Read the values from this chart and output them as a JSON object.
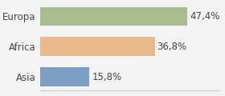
{
  "categories": [
    "Europa",
    "Africa",
    "Asia"
  ],
  "values": [
    47.4,
    36.8,
    15.8
  ],
  "labels": [
    "47,4%",
    "36,8%",
    "15,8%"
  ],
  "bar_colors": [
    "#a8bc8f",
    "#e8b98a",
    "#7b9ec4"
  ],
  "background_color": "#f4f4f4",
  "xlim": [
    0,
    58
  ],
  "bar_height": 0.62,
  "label_fontsize": 8.5,
  "tick_fontsize": 8.5
}
